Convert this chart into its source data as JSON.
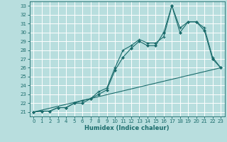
{
  "title": "",
  "xlabel": "Humidex (Indice chaleur)",
  "background_color": "#b8dede",
  "grid_color": "#ffffff",
  "line_color": "#1a6b6b",
  "xlim": [
    -0.5,
    23.5
  ],
  "ylim": [
    20.5,
    33.5
  ],
  "xticks": [
    0,
    1,
    2,
    3,
    4,
    5,
    6,
    7,
    8,
    9,
    10,
    11,
    12,
    13,
    14,
    15,
    16,
    17,
    18,
    19,
    20,
    21,
    22,
    23
  ],
  "yticks": [
    21,
    22,
    23,
    24,
    25,
    26,
    27,
    28,
    29,
    30,
    31,
    32,
    33
  ],
  "series1_x": [
    0,
    1,
    2,
    3,
    4,
    5,
    6,
    7,
    8,
    9,
    10,
    11,
    12,
    13,
    14,
    15,
    16,
    17,
    18,
    19,
    20,
    21,
    22,
    23
  ],
  "series1_y": [
    21,
    21.1,
    21.1,
    21.5,
    21.5,
    22,
    22,
    22.5,
    23,
    23.5,
    25.7,
    27.2,
    28.2,
    29.0,
    28.5,
    28.5,
    30.0,
    33.0,
    30.0,
    31.2,
    31.2,
    30.2,
    27.0,
    26.0
  ],
  "series2_x": [
    0,
    1,
    2,
    3,
    4,
    5,
    6,
    7,
    8,
    9,
    10,
    11,
    12,
    13,
    14,
    15,
    16,
    17,
    18,
    19,
    20,
    21,
    22,
    23
  ],
  "series2_y": [
    21,
    21.1,
    21.1,
    21.5,
    21.5,
    22.0,
    22.3,
    22.5,
    23.3,
    23.7,
    26.0,
    28.0,
    28.5,
    29.2,
    28.8,
    28.8,
    29.5,
    33.0,
    30.5,
    31.2,
    31.2,
    30.5,
    27.2,
    26.0
  ],
  "series3_x": [
    0,
    23
  ],
  "series3_y": [
    21,
    26.0
  ]
}
